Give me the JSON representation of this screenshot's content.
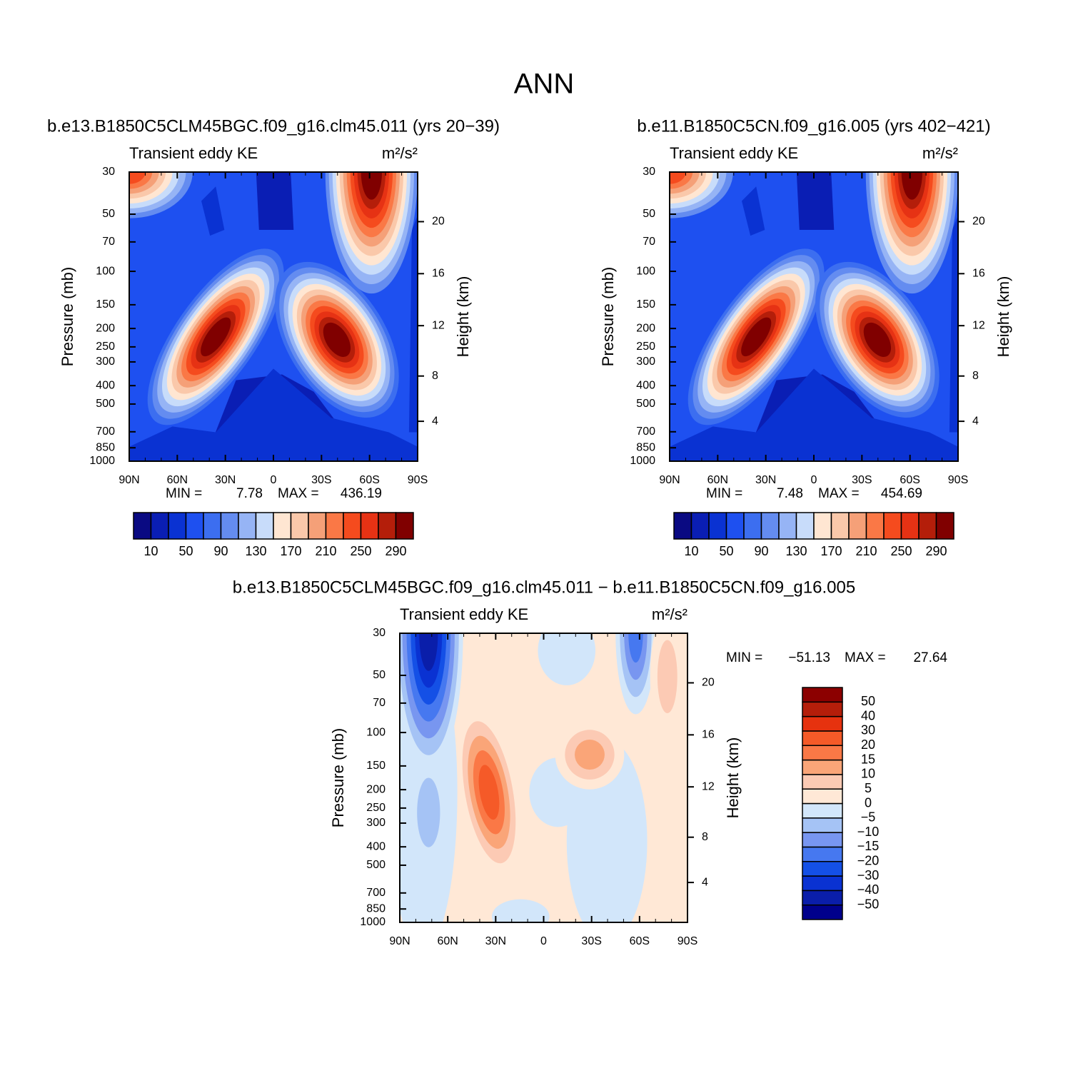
{
  "title": "ANN",
  "panels": [
    {
      "type": "contour",
      "title": "b.e13.B1850C5CLM45BGC.f09_g16.clm45.011 (yrs 20−39)",
      "left_label": "Transient eddy KE",
      "units": "m²/s²",
      "ylabel": "Pressure (mb)",
      "y2label": "Height (km)",
      "xlim": [
        90,
        -90
      ],
      "xticks": [
        {
          "value": 90,
          "label": "90N"
        },
        {
          "value": 60,
          "label": "60N"
        },
        {
          "value": 30,
          "label": "30N"
        },
        0,
        {
          "value": -30,
          "label": "30S"
        },
        {
          "value": -60,
          "label": "60S"
        },
        {
          "value": -90,
          "label": "90S"
        }
      ],
      "ylim": [
        1000,
        30
      ],
      "log_y": true,
      "yticks": [
        30,
        50,
        70,
        100,
        150,
        200,
        250,
        300,
        400,
        500,
        700,
        850,
        1000
      ],
      "y2ticks": [
        4,
        8,
        12,
        16,
        20
      ],
      "min_label": "MIN =",
      "min": 7.78,
      "max_label": "MAX =",
      "max": 436.19,
      "colorbar": {
        "orientation": "horizontal",
        "levels": [
          10,
          50,
          90,
          130,
          170,
          210,
          250,
          290
        ],
        "colors": [
          "#0a0a82",
          "#0a1eb4",
          "#0a32d2",
          "#1e50f0",
          "#3c6ef0",
          "#648cf0",
          "#96b4f5",
          "#c8dcfa",
          "#ffe6d2",
          "#fac8aa",
          "#f5a078",
          "#fa7846",
          "#f54b1e",
          "#e63214",
          "#b41e0a",
          "#800000"
        ]
      }
    },
    {
      "type": "contour",
      "title": "b.e11.B1850C5CN.f09_g16.005 (yrs 402−421)",
      "left_label": "Transient eddy KE",
      "units": "m²/s²",
      "ylabel": "Pressure (mb)",
      "y2label": "Height (km)",
      "xlim": [
        90,
        -90
      ],
      "xticks": [
        {
          "value": 90,
          "label": "90N"
        },
        {
          "value": 60,
          "label": "60N"
        },
        {
          "value": 30,
          "label": "30N"
        },
        0,
        {
          "value": -30,
          "label": "30S"
        },
        {
          "value": -60,
          "label": "60S"
        },
        {
          "value": -90,
          "label": "90S"
        }
      ],
      "ylim": [
        1000,
        30
      ],
      "log_y": true,
      "yticks": [
        30,
        50,
        70,
        100,
        150,
        200,
        250,
        300,
        400,
        500,
        700,
        850,
        1000
      ],
      "y2ticks": [
        4,
        8,
        12,
        16,
        20
      ],
      "min_label": "MIN =",
      "min": 7.48,
      "max_label": "MAX =",
      "max": 454.69,
      "colorbar": {
        "orientation": "horizontal",
        "levels": [
          10,
          50,
          90,
          130,
          170,
          210,
          250,
          290
        ],
        "colors": [
          "#0a0a82",
          "#0a1eb4",
          "#0a32d2",
          "#1e50f0",
          "#3c6ef0",
          "#648cf0",
          "#96b4f5",
          "#c8dcfa",
          "#ffe6d2",
          "#fac8aa",
          "#f5a078",
          "#fa7846",
          "#f54b1e",
          "#e63214",
          "#b41e0a",
          "#800000"
        ]
      }
    },
    {
      "type": "contour",
      "title": "b.e13.B1850C5CLM45BGC.f09_g16.clm45.011 − b.e11.B1850C5CN.f09_g16.005",
      "left_label": "Transient eddy KE",
      "units": "m²/s²",
      "ylabel": "Pressure (mb)",
      "y2label": "Height (km)",
      "xlim": [
        90,
        -90
      ],
      "xticks": [
        {
          "value": 90,
          "label": "90N"
        },
        {
          "value": 60,
          "label": "60N"
        },
        {
          "value": 30,
          "label": "30N"
        },
        0,
        {
          "value": -30,
          "label": "30S"
        },
        {
          "value": -60,
          "label": "60S"
        },
        {
          "value": -90,
          "label": "90S"
        }
      ],
      "ylim": [
        1000,
        30
      ],
      "log_y": true,
      "yticks": [
        30,
        50,
        70,
        100,
        150,
        200,
        250,
        300,
        400,
        500,
        700,
        850,
        1000
      ],
      "y2ticks": [
        4,
        8,
        12,
        16,
        20
      ],
      "min_label": "MIN =",
      "min": {
        "value": -51.13,
        "label": "−51.13"
      },
      "max_label": "MAX =",
      "max": 27.64,
      "colorbar": {
        "orientation": "vertical",
        "levels": [
          {
            "value": -50,
            "label": "−50"
          },
          {
            "value": -40,
            "label": "−40"
          },
          {
            "value": -30,
            "label": "−30"
          },
          {
            "value": -20,
            "label": "−20"
          },
          {
            "value": -15,
            "label": "−15"
          },
          {
            "value": -10,
            "label": "−10"
          },
          {
            "value": -5,
            "label": "−5"
          },
          0,
          5,
          10,
          15,
          20,
          30,
          40,
          50
        ],
        "colors": [
          "#00008c",
          "#0a1eaa",
          "#0a32d2",
          "#1450e6",
          "#4678f0",
          "#7896f0",
          "#a5c3f5",
          "#d2e6fa",
          "#ffe8d6",
          "#fccab4",
          "#faa578",
          "#fa7846",
          "#f55a28",
          "#e6320f",
          "#b41e0a",
          "#8c0000"
        ]
      }
    }
  ]
}
